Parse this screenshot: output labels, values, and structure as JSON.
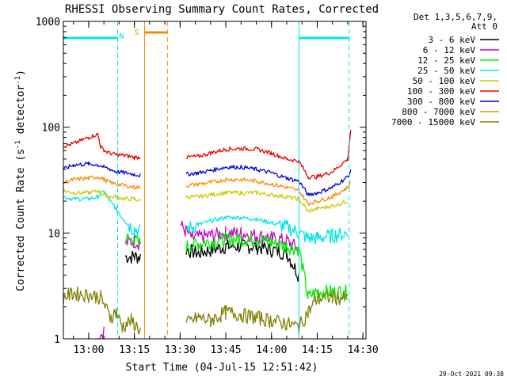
{
  "chart_data": {
    "type": "line",
    "title": "RHESSI Observing Summary Count Rates, Corrected",
    "xlabel": "Start Time (04-Jul-15 12:51:42)",
    "ylabel_main": "Corrected Count Rate (s",
    "ylabel_sup1": "-1",
    "ylabel_mid": " detector",
    "ylabel_sup2": "-1",
    "ylabel_end": ")",
    "y_scale": "log",
    "ylim": [
      1,
      1000
    ],
    "xlim": [
      "12:51:42",
      "14:31:00"
    ],
    "x_ticks": [
      "13:00",
      "13:15",
      "13:30",
      "13:45",
      "14:00",
      "14:15",
      "14:30"
    ],
    "y_ticks": [
      "1",
      "10",
      "100",
      "1000"
    ],
    "grid": false,
    "legend_position": "right",
    "legend_header": [
      "Det 1,3,5,6,7,9,",
      "Att 0"
    ],
    "timestamp": "29-Oct-2021 09:38",
    "markers": {
      "night_label": "N",
      "saa_label": "S",
      "night_bars": [
        [
          "12:51:42",
          "13:09:30"
        ],
        [
          "14:09:00",
          "14:25:30"
        ]
      ],
      "night_bounds": [
        "13:09:30",
        "14:09:00",
        "14:25:30"
      ],
      "saa_bar": [
        "13:18:20",
        "13:25:50"
      ],
      "saa_bounds": [
        "13:18:20",
        "13:25:50"
      ],
      "data_gap": [
        "13:17:30",
        "13:28:30"
      ]
    },
    "series": [
      {
        "name": "3 - 6 keV",
        "color": "#000000",
        "x": [
          "12:51:42",
          "12:55",
          "13:00",
          "13:05",
          "13:07",
          "13:09",
          "13:12",
          "13:15",
          "13:17",
          "13:28",
          "13:32",
          "13:36",
          "13:45",
          "13:55",
          "14:05",
          "14:09",
          "14:15",
          "14:20",
          "14:25"
        ],
        "y": [
          null,
          null,
          null,
          null,
          null,
          null,
          6,
          6,
          6,
          null,
          7,
          6.5,
          7.5,
          7.5,
          6.5,
          4,
          null,
          null,
          null
        ]
      },
      {
        "name": "6 - 12 keV",
        "color": "#cc00cc",
        "x": [
          "12:51:42",
          "13:00",
          "13:03",
          "13:05",
          "13:07",
          "13:10",
          "13:12",
          "13:15",
          "13:17",
          "13:28",
          "13:30",
          "13:34",
          "13:40",
          "13:45",
          "13:50",
          "13:55",
          "14:00",
          "14:05",
          "14:09",
          "14:15",
          "14:20",
          "14:25"
        ],
        "y": [
          null,
          null,
          1,
          1.2,
          null,
          null,
          8,
          8.5,
          8,
          null,
          12,
          9,
          9.5,
          10,
          10,
          9.5,
          9,
          8.5,
          7,
          null,
          null,
          null
        ]
      },
      {
        "name": "12 - 25 keV",
        "color": "#00ee00",
        "x": [
          "12:51:42",
          "12:55",
          "13:00",
          "13:04",
          "13:07",
          "13:09",
          "13:12",
          "13:15",
          "13:17",
          "13:28",
          "13:32",
          "13:36",
          "13:45",
          "13:55",
          "14:00",
          "14:05",
          "14:09",
          "14:12",
          "14:15",
          "14:20",
          "14:25"
        ],
        "y": [
          null,
          null,
          null,
          null,
          null,
          null,
          9,
          8.5,
          8,
          null,
          7.5,
          8,
          8.8,
          8.8,
          8.2,
          7.5,
          7.2,
          2.5,
          2.8,
          2.8,
          2.8
        ]
      },
      {
        "name": "25 - 50 keV",
        "color": "#00e5e5",
        "x": [
          "12:51:42",
          "12:55",
          "13:00",
          "13:03",
          "13:05",
          "13:07",
          "13:09",
          "13:11",
          "13:13",
          "13:15",
          "13:17",
          "13:28",
          "13:32",
          "13:36",
          "13:40",
          "13:45",
          "13:50",
          "13:55",
          "14:00",
          "14:05",
          "14:09",
          "14:12",
          "14:15",
          "14:20",
          "14:25"
        ],
        "y": [
          22,
          21,
          21,
          22,
          25,
          20,
          17,
          14,
          12,
          11,
          10.5,
          null,
          11,
          12,
          13,
          14,
          14,
          13.5,
          12.5,
          11.5,
          10,
          9,
          9,
          9.5,
          10
        ]
      },
      {
        "name": "50 - 100 keV",
        "color": "#cccc00",
        "x": [
          "12:51:42",
          "12:55",
          "13:00",
          "13:03",
          "13:05",
          "13:07",
          "13:09",
          "13:12",
          "13:15",
          "13:17",
          "13:28",
          "13:32",
          "13:36",
          "13:40",
          "13:45",
          "13:50",
          "13:55",
          "14:00",
          "14:05",
          "14:09",
          "14:12",
          "14:15",
          "14:20",
          "14:25"
        ],
        "y": [
          25,
          24,
          24,
          25,
          23,
          22,
          22,
          21,
          21,
          20,
          null,
          22,
          22,
          23,
          24,
          24,
          24,
          23,
          22,
          21,
          16,
          17,
          18,
          20
        ]
      },
      {
        "name": "100 - 300 keV",
        "color": "#ee0000",
        "x": [
          "12:51:42",
          "12:55",
          "13:00",
          "13:03",
          "13:04",
          "13:06",
          "13:09",
          "13:12",
          "13:15",
          "13:17",
          "13:28",
          "13:32",
          "13:36",
          "13:40",
          "13:45",
          "13:50",
          "13:55",
          "14:00",
          "14:05",
          "14:09",
          "14:12",
          "14:15",
          "14:20",
          "14:25",
          "14:26"
        ],
        "y": [
          66,
          70,
          80,
          86,
          65,
          58,
          55,
          54,
          52,
          52,
          null,
          52,
          53,
          57,
          62,
          63,
          62,
          57,
          50,
          48,
          34,
          34,
          38,
          50,
          95
        ]
      },
      {
        "name": "300 - 800 keV",
        "color": "#0000dd",
        "x": [
          "12:51:42",
          "12:55",
          "13:00",
          "13:03",
          "13:05",
          "13:07",
          "13:09",
          "13:12",
          "13:15",
          "13:17",
          "13:28",
          "13:32",
          "13:36",
          "13:40",
          "13:45",
          "13:50",
          "13:55",
          "14:00",
          "14:05",
          "14:09",
          "14:12",
          "14:15",
          "14:20",
          "14:25",
          "14:26"
        ],
        "y": [
          40,
          44,
          45,
          44,
          42,
          40,
          38,
          37,
          36,
          35,
          null,
          36,
          37,
          39,
          42,
          42,
          40,
          37,
          33,
          31,
          23,
          24,
          27,
          34,
          38
        ]
      },
      {
        "name": "800 - 7000 keV",
        "color": "#ff8800",
        "x": [
          "12:51:42",
          "12:55",
          "13:00",
          "13:03",
          "13:05",
          "13:07",
          "13:09",
          "13:12",
          "13:15",
          "13:17",
          "13:28",
          "13:32",
          "13:36",
          "13:40",
          "13:45",
          "13:50",
          "13:55",
          "14:00",
          "14:05",
          "14:09",
          "14:12",
          "14:15",
          "14:20",
          "14:25",
          "14:26"
        ],
        "y": [
          30,
          32,
          33,
          34,
          32,
          30,
          29,
          28,
          27,
          27,
          null,
          28,
          29,
          30,
          32,
          32,
          31,
          29,
          27,
          25,
          19,
          20,
          22,
          27,
          30
        ]
      },
      {
        "name": "7000 - 15000 keV",
        "color": "#808000",
        "x": [
          "12:51:42",
          "12:55",
          "13:00",
          "13:04",
          "13:07",
          "13:09",
          "13:11",
          "13:14",
          "13:17",
          "13:28",
          "13:32",
          "13:36",
          "13:40",
          "13:45",
          "13:50",
          "13:55",
          "14:00",
          "14:05",
          "14:09",
          "14:12",
          "14:15",
          "14:20",
          "14:25"
        ],
        "y": [
          2.5,
          2.7,
          2.6,
          2.5,
          1.6,
          1.8,
          1.3,
          1.5,
          1.2,
          null,
          1.4,
          1.6,
          1.5,
          1.8,
          1.7,
          1.6,
          1.5,
          1.4,
          1.3,
          1.8,
          2.4,
          2.5,
          2.4
        ]
      }
    ]
  }
}
